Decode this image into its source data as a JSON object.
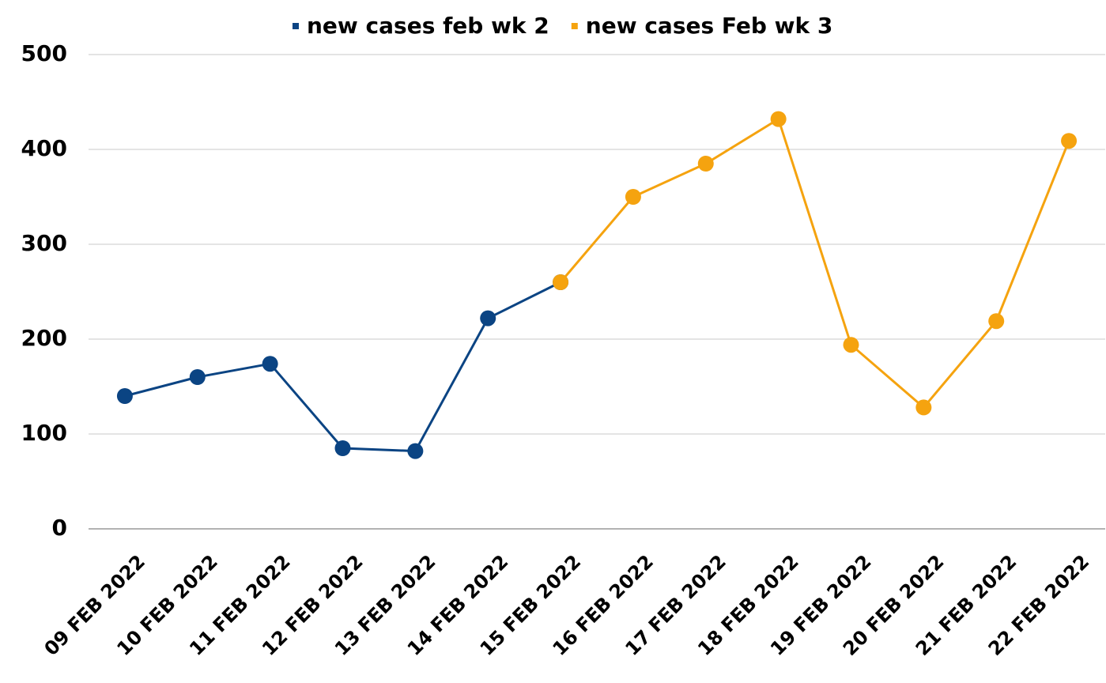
{
  "chart_data": {
    "type": "line",
    "categories": [
      "09 FEB 2022",
      "10 FEB 2022",
      "11 FEB 2022",
      "12 FEB 2022",
      "13 FEB 2022",
      "14 FEB 2022",
      "15 FEB 2022",
      "16 FEB 2022",
      "17 FEB 2022",
      "18 FEB 2022",
      "19 FEB 2022",
      "20 FEB 2022",
      "21 FEB 2022",
      "22 FEB 2022"
    ],
    "series": [
      {
        "name": "new cases feb wk 2",
        "color": "#0b4483",
        "values": [
          140,
          160,
          174,
          85,
          82,
          222,
          260,
          null,
          null,
          null,
          null,
          null,
          null,
          null
        ]
      },
      {
        "name": "new cases Feb wk 3",
        "color": "#f5a30f",
        "values": [
          null,
          null,
          null,
          null,
          null,
          null,
          260,
          350,
          385,
          432,
          194,
          128,
          219,
          409
        ]
      }
    ],
    "ylim": [
      0,
      500
    ],
    "yticks": [
      0,
      100,
      200,
      300,
      400,
      500
    ],
    "grid": true,
    "legend": "top"
  }
}
